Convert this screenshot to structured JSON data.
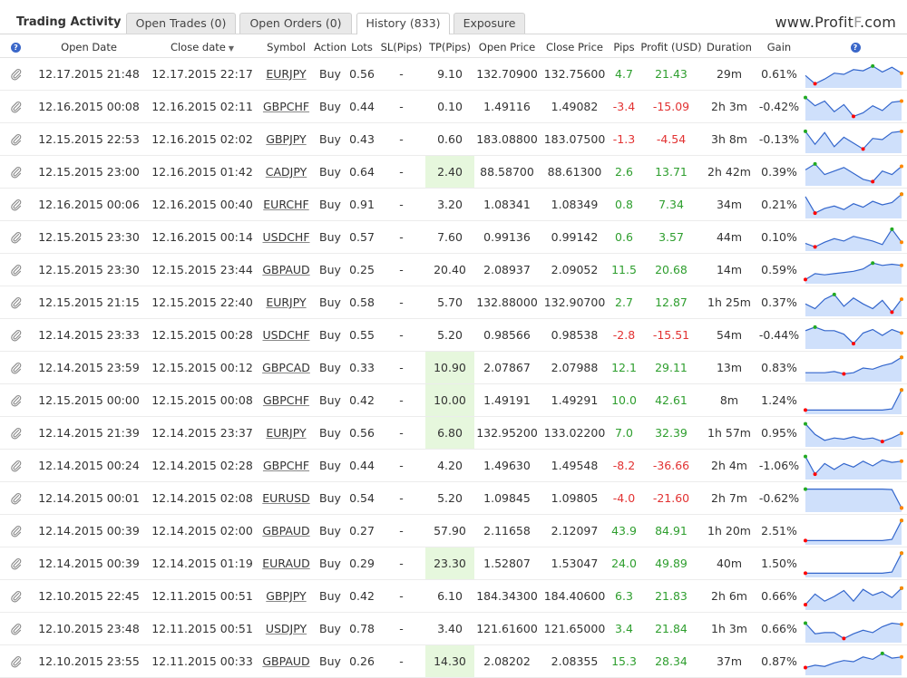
{
  "header": {
    "title": "Trading Activity",
    "tabs": [
      {
        "label": "Open Trades (0)",
        "active": false
      },
      {
        "label": "Open Orders (0)",
        "active": false
      },
      {
        "label": "History (833)",
        "active": true
      },
      {
        "label": "Exposure",
        "active": false
      }
    ],
    "watermark_a": "www.Profit",
    "watermark_b": "F",
    "watermark_c": ".com"
  },
  "columns": {
    "open_date": "Open Date",
    "close_date": "Close date",
    "symbol": "Symbol",
    "action": "Action",
    "lots": "Lots",
    "sl": "SL(Pips)",
    "tp": "TP(Pips)",
    "open_price": "Open Price",
    "close_price": "Close Price",
    "pips": "Pips",
    "profit": "Profit (USD)",
    "duration": "Duration",
    "gain": "Gain"
  },
  "icons": {
    "help": "?",
    "sort": "▼",
    "row": "paperclip-icon"
  },
  "colors": {
    "positive": "#2e9e2e",
    "negative": "#e23232",
    "tp_highlight": "#e6f7dd",
    "spark_fill": "#cfe0fb",
    "spark_line": "#3366cc",
    "spark_start": "#ff0000",
    "spark_max": "#22aa22",
    "spark_end": "#ff8800"
  },
  "rows": [
    {
      "open": "12.17.2015 21:48",
      "close": "12.17.2015 22:17",
      "symbol": "EURJPY",
      "action": "Buy",
      "lots": "0.56",
      "sl": "-",
      "tp": "9.10",
      "tp_hl": false,
      "open_price": "132.70900",
      "close_price": "132.75600",
      "pips": "4.7",
      "profit": "21.43",
      "duration": "29m",
      "gain": "0.61%",
      "spark": [
        0.45,
        0.1,
        0.3,
        0.55,
        0.5,
        0.7,
        0.65,
        0.85,
        0.6,
        0.8,
        0.55
      ]
    },
    {
      "open": "12.16.2015 00:08",
      "close": "12.16.2015 02:11",
      "symbol": "GBPCHF",
      "action": "Buy",
      "lots": "0.44",
      "sl": "-",
      "tp": "0.10",
      "tp_hl": false,
      "open_price": "1.49116",
      "close_price": "1.49082",
      "pips": "-3.4",
      "profit": "-15.09",
      "duration": "2h 3m",
      "gain": "-0.42%",
      "spark": [
        0.9,
        0.55,
        0.75,
        0.3,
        0.6,
        0.1,
        0.25,
        0.55,
        0.35,
        0.7,
        0.75
      ]
    },
    {
      "open": "12.15.2015 22:53",
      "close": "12.16.2015 02:02",
      "symbol": "GBPJPY",
      "action": "Buy",
      "lots": "0.43",
      "sl": "-",
      "tp": "0.60",
      "tp_hl": false,
      "open_price": "183.08800",
      "close_price": "183.07500",
      "pips": "-1.3",
      "profit": "-4.54",
      "duration": "3h 8m",
      "gain": "-0.13%",
      "spark": [
        0.85,
        0.3,
        0.8,
        0.2,
        0.6,
        0.35,
        0.1,
        0.55,
        0.5,
        0.8,
        0.85
      ]
    },
    {
      "open": "12.15.2015 23:00",
      "close": "12.16.2015 01:42",
      "symbol": "CADJPY",
      "action": "Buy",
      "lots": "0.64",
      "sl": "-",
      "tp": "2.40",
      "tp_hl": true,
      "open_price": "88.58700",
      "close_price": "88.61300",
      "pips": "2.6",
      "profit": "13.71",
      "duration": "2h 42m",
      "gain": "0.39%",
      "spark": [
        0.6,
        0.85,
        0.4,
        0.55,
        0.7,
        0.45,
        0.2,
        0.1,
        0.55,
        0.4,
        0.75
      ]
    },
    {
      "open": "12.16.2015 00:06",
      "close": "12.16.2015 00:40",
      "symbol": "EURCHF",
      "action": "Buy",
      "lots": "0.91",
      "sl": "-",
      "tp": "3.20",
      "tp_hl": false,
      "open_price": "1.08341",
      "close_price": "1.08349",
      "pips": "0.8",
      "profit": "7.34",
      "duration": "34m",
      "gain": "0.21%",
      "spark": [
        0.85,
        0.15,
        0.35,
        0.45,
        0.3,
        0.55,
        0.4,
        0.65,
        0.5,
        0.6,
        0.95
      ]
    },
    {
      "open": "12.15.2015 23:30",
      "close": "12.16.2015 00:14",
      "symbol": "USDCHF",
      "action": "Buy",
      "lots": "0.57",
      "sl": "-",
      "tp": "7.60",
      "tp_hl": false,
      "open_price": "0.99136",
      "close_price": "0.99142",
      "pips": "0.6",
      "profit": "3.57",
      "duration": "44m",
      "gain": "0.10%",
      "spark": [
        0.25,
        0.1,
        0.3,
        0.45,
        0.35,
        0.55,
        0.45,
        0.35,
        0.2,
        0.85,
        0.3
      ]
    },
    {
      "open": "12.15.2015 23:30",
      "close": "12.15.2015 23:44",
      "symbol": "GBPAUD",
      "action": "Buy",
      "lots": "0.25",
      "sl": "-",
      "tp": "20.40",
      "tp_hl": false,
      "open_price": "2.08937",
      "close_price": "2.09052",
      "pips": "11.5",
      "profit": "20.68",
      "duration": "14m",
      "gain": "0.59%",
      "spark": [
        0.1,
        0.35,
        0.3,
        0.35,
        0.4,
        0.45,
        0.55,
        0.8,
        0.7,
        0.75,
        0.7
      ]
    },
    {
      "open": "12.15.2015 21:15",
      "close": "12.15.2015 22:40",
      "symbol": "EURJPY",
      "action": "Buy",
      "lots": "0.58",
      "sl": "-",
      "tp": "5.70",
      "tp_hl": false,
      "open_price": "132.88000",
      "close_price": "132.90700",
      "pips": "2.7",
      "profit": "12.87",
      "duration": "1h 25m",
      "gain": "0.37%",
      "spark": [
        0.45,
        0.25,
        0.65,
        0.85,
        0.35,
        0.7,
        0.45,
        0.25,
        0.6,
        0.1,
        0.65
      ]
    },
    {
      "open": "12.14.2015 23:33",
      "close": "12.15.2015 00:28",
      "symbol": "USDCHF",
      "action": "Buy",
      "lots": "0.55",
      "sl": "-",
      "tp": "5.20",
      "tp_hl": false,
      "open_price": "0.98566",
      "close_price": "0.98538",
      "pips": "-2.8",
      "profit": "-15.51",
      "duration": "54m",
      "gain": "-0.44%",
      "spark": [
        0.7,
        0.85,
        0.7,
        0.7,
        0.55,
        0.15,
        0.6,
        0.75,
        0.5,
        0.75,
        0.6
      ]
    },
    {
      "open": "12.14.2015 23:59",
      "close": "12.15.2015 00:12",
      "symbol": "GBPCAD",
      "action": "Buy",
      "lots": "0.33",
      "sl": "-",
      "tp": "10.90",
      "tp_hl": true,
      "open_price": "2.07867",
      "close_price": "2.07988",
      "pips": "12.1",
      "profit": "29.11",
      "duration": "13m",
      "gain": "0.83%",
      "spark": [
        0.3,
        0.3,
        0.3,
        0.35,
        0.25,
        0.3,
        0.5,
        0.45,
        0.6,
        0.7,
        0.95
      ]
    },
    {
      "open": "12.15.2015 00:00",
      "close": "12.15.2015 00:08",
      "symbol": "GBPCHF",
      "action": "Buy",
      "lots": "0.42",
      "sl": "-",
      "tp": "10.00",
      "tp_hl": true,
      "open_price": "1.49191",
      "close_price": "1.49291",
      "pips": "10.0",
      "profit": "42.61",
      "duration": "8m",
      "gain": "1.24%",
      "spark": [
        0.1,
        0.1,
        0.1,
        0.1,
        0.1,
        0.1,
        0.1,
        0.1,
        0.1,
        0.15,
        0.95
      ]
    },
    {
      "open": "12.14.2015 21:39",
      "close": "12.14.2015 23:37",
      "symbol": "EURJPY",
      "action": "Buy",
      "lots": "0.56",
      "sl": "-",
      "tp": "6.80",
      "tp_hl": true,
      "open_price": "132.95200",
      "close_price": "133.02200",
      "pips": "7.0",
      "profit": "32.39",
      "duration": "1h 57m",
      "gain": "0.95%",
      "spark": [
        0.9,
        0.45,
        0.2,
        0.3,
        0.25,
        0.35,
        0.25,
        0.3,
        0.15,
        0.3,
        0.5
      ]
    },
    {
      "open": "12.14.2015 00:24",
      "close": "12.14.2015 02:28",
      "symbol": "GBPCHF",
      "action": "Buy",
      "lots": "0.44",
      "sl": "-",
      "tp": "4.20",
      "tp_hl": false,
      "open_price": "1.49630",
      "close_price": "1.49548",
      "pips": "-8.2",
      "profit": "-36.66",
      "duration": "2h 4m",
      "gain": "-1.06%",
      "spark": [
        0.9,
        0.15,
        0.6,
        0.35,
        0.6,
        0.45,
        0.7,
        0.5,
        0.75,
        0.65,
        0.7
      ]
    },
    {
      "open": "12.14.2015 00:01",
      "close": "12.14.2015 02:08",
      "symbol": "EURUSD",
      "action": "Buy",
      "lots": "0.54",
      "sl": "-",
      "tp": "5.20",
      "tp_hl": false,
      "open_price": "1.09845",
      "close_price": "1.09805",
      "pips": "-4.0",
      "profit": "-21.60",
      "duration": "2h 7m",
      "gain": "-0.62%",
      "spark": [
        0.9,
        0.9,
        0.9,
        0.9,
        0.9,
        0.9,
        0.9,
        0.9,
        0.9,
        0.88,
        0.1
      ]
    },
    {
      "open": "12.14.2015 00:39",
      "close": "12.14.2015 02:00",
      "symbol": "GBPAUD",
      "action": "Buy",
      "lots": "0.27",
      "sl": "-",
      "tp": "57.90",
      "tp_hl": false,
      "open_price": "2.11658",
      "close_price": "2.12097",
      "pips": "43.9",
      "profit": "84.91",
      "duration": "1h 20m",
      "gain": "2.51%",
      "spark": [
        0.1,
        0.1,
        0.1,
        0.1,
        0.1,
        0.1,
        0.1,
        0.1,
        0.1,
        0.15,
        0.95
      ]
    },
    {
      "open": "12.14.2015 00:39",
      "close": "12.14.2015 01:19",
      "symbol": "EURAUD",
      "action": "Buy",
      "lots": "0.29",
      "sl": "-",
      "tp": "23.30",
      "tp_hl": true,
      "open_price": "1.52807",
      "close_price": "1.53047",
      "pips": "24.0",
      "profit": "49.89",
      "duration": "40m",
      "gain": "1.50%",
      "spark": [
        0.1,
        0.1,
        0.1,
        0.1,
        0.1,
        0.1,
        0.1,
        0.1,
        0.1,
        0.15,
        0.95
      ]
    },
    {
      "open": "12.10.2015 22:45",
      "close": "12.11.2015 00:51",
      "symbol": "GBPJPY",
      "action": "Buy",
      "lots": "0.42",
      "sl": "-",
      "tp": "6.10",
      "tp_hl": false,
      "open_price": "184.34300",
      "close_price": "184.40600",
      "pips": "6.3",
      "profit": "21.83",
      "duration": "2h 6m",
      "gain": "0.66%",
      "spark": [
        0.15,
        0.6,
        0.3,
        0.5,
        0.75,
        0.3,
        0.8,
        0.55,
        0.7,
        0.45,
        0.85
      ]
    },
    {
      "open": "12.10.2015 23:48",
      "close": "12.11.2015 00:51",
      "symbol": "USDJPY",
      "action": "Buy",
      "lots": "0.78",
      "sl": "-",
      "tp": "3.40",
      "tp_hl": false,
      "open_price": "121.61600",
      "close_price": "121.65000",
      "pips": "3.4",
      "profit": "21.84",
      "duration": "1h 3m",
      "gain": "0.66%",
      "spark": [
        0.75,
        0.3,
        0.35,
        0.35,
        0.1,
        0.3,
        0.45,
        0.35,
        0.6,
        0.75,
        0.7
      ]
    },
    {
      "open": "12.10.2015 23:55",
      "close": "12.11.2015 00:33",
      "symbol": "GBPAUD",
      "action": "Buy",
      "lots": "0.26",
      "sl": "-",
      "tp": "14.30",
      "tp_hl": true,
      "open_price": "2.08202",
      "close_price": "2.08355",
      "pips": "15.3",
      "profit": "28.34",
      "duration": "37m",
      "gain": "0.87%",
      "spark": [
        0.25,
        0.35,
        0.3,
        0.45,
        0.55,
        0.5,
        0.7,
        0.6,
        0.85,
        0.65,
        0.7
      ]
    }
  ]
}
